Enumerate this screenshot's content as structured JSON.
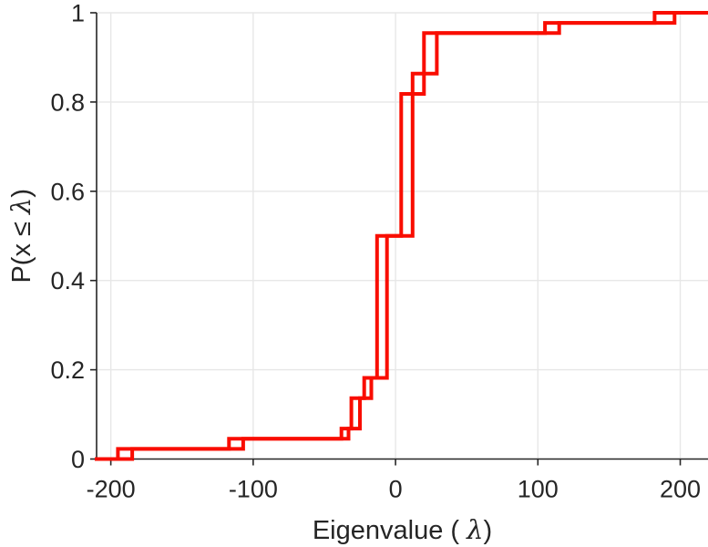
{
  "figure": {
    "background": "#ffffff"
  },
  "chart_data": {
    "type": "line",
    "subtype": "ecdf-stairs",
    "title": "",
    "xlabel": {
      "pre": "Eigenvalue (  ",
      "symbol": "λ",
      "post": ")"
    },
    "ylabel": {
      "pre": "P(x ≤ ",
      "symbol": "λ",
      "post": ")"
    },
    "xlim": [
      -210,
      219.5
    ],
    "ylim": [
      0,
      1
    ],
    "xticks": {
      "values": [
        -200,
        -100,
        0,
        100,
        200
      ],
      "labels": [
        "-200",
        "-100",
        "0",
        "100",
        "200"
      ]
    },
    "yticks": {
      "values": [
        0,
        0.2,
        0.4,
        0.6,
        0.8,
        1
      ],
      "labels": [
        "0",
        "0.2",
        "0.4",
        "0.6",
        "0.8",
        "1"
      ]
    },
    "grid": true,
    "legend": null,
    "colors": {
      "line": "#f90d00",
      "axis": "#252525",
      "grid": "#e7e7e7",
      "tick_label": "#252525"
    },
    "line_width": 4,
    "series": [
      {
        "name": "ecdf-curve-1",
        "color": "#f90d00",
        "steps": [
          [
            -195,
            0.0227
          ],
          [
            -117,
            0.0455
          ],
          [
            -38,
            0.0682
          ],
          [
            -31,
            0.1364
          ],
          [
            -22,
            0.1818
          ],
          [
            -13,
            0.5
          ],
          [
            4,
            0.8182
          ],
          [
            12,
            0.8636
          ],
          [
            20,
            0.9545
          ],
          [
            105,
            0.9773
          ],
          [
            182,
            1.0
          ]
        ]
      },
      {
        "name": "ecdf-curve-2",
        "color": "#f90d00",
        "steps": [
          [
            -185,
            0.0227
          ],
          [
            -107,
            0.0455
          ],
          [
            -33,
            0.0682
          ],
          [
            -25,
            0.1364
          ],
          [
            -17,
            0.1818
          ],
          [
            -6,
            0.5
          ],
          [
            12,
            0.8182
          ],
          [
            20,
            0.8636
          ],
          [
            29,
            0.9545
          ],
          [
            115,
            0.9773
          ],
          [
            196,
            1.0
          ]
        ]
      }
    ]
  }
}
